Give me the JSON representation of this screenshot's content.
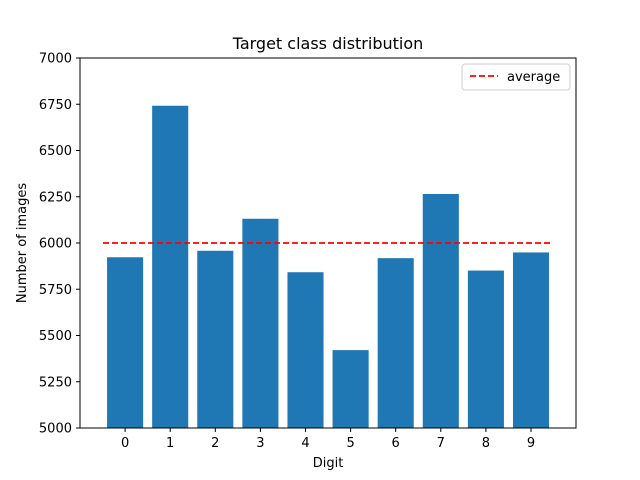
{
  "chart_data": {
    "type": "bar",
    "title": "Target class distribution",
    "xlabel": "Digit",
    "ylabel": "Number of images",
    "categories": [
      "0",
      "1",
      "2",
      "3",
      "4",
      "5",
      "6",
      "7",
      "8",
      "9"
    ],
    "values": [
      5923,
      6742,
      5958,
      6131,
      5842,
      5421,
      5918,
      6265,
      5851,
      5949
    ],
    "ylim": [
      5000,
      7000
    ],
    "yticks": [
      5000,
      5250,
      5500,
      5750,
      6000,
      6250,
      6500,
      6750,
      7000
    ],
    "reference_line": {
      "name": "average",
      "value": 6000,
      "style": "dashed",
      "color": "#ff0000"
    },
    "bar_color": "#1f77b4",
    "legend": {
      "entries": [
        "average"
      ],
      "position": "top-right"
    },
    "grid": false
  }
}
